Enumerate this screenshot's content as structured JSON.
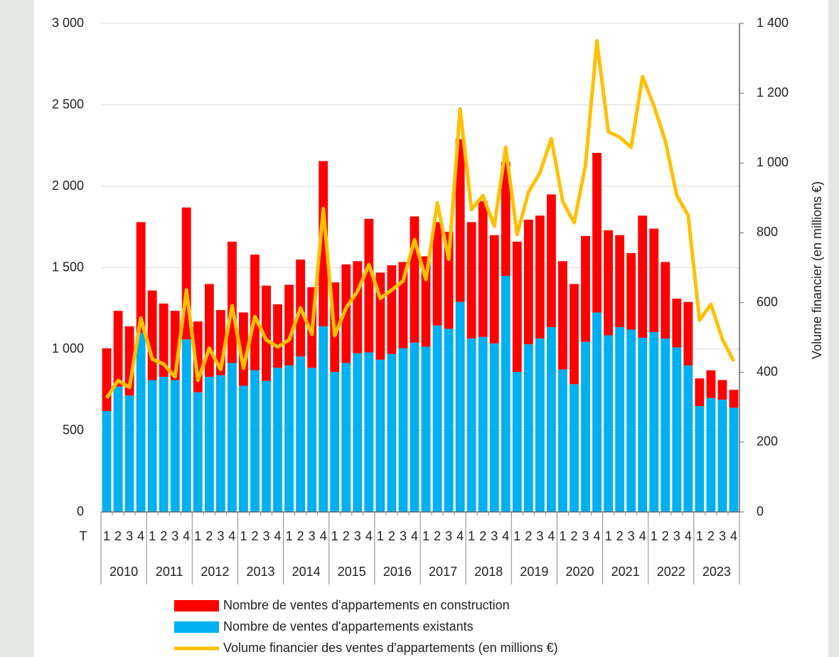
{
  "chart_data": {
    "type": "bar_line",
    "x_axis_prefix": "T",
    "y2_label": "Volume financier (en millions €)",
    "categories": [
      "1",
      "2",
      "3",
      "4",
      "1",
      "2",
      "3",
      "4",
      "1",
      "2",
      "3",
      "4",
      "1",
      "2",
      "3",
      "4",
      "1",
      "2",
      "3",
      "4",
      "1",
      "2",
      "3",
      "4",
      "1",
      "2",
      "3",
      "4",
      "1",
      "2",
      "3",
      "4",
      "1",
      "2",
      "3",
      "4",
      "1",
      "2",
      "3",
      "4",
      "1",
      "2",
      "3",
      "4",
      "1",
      "2",
      "3",
      "4",
      "1",
      "2",
      "3",
      "4",
      "1",
      "2",
      "3",
      "4"
    ],
    "years": [
      "2010",
      "2011",
      "2012",
      "2013",
      "2014",
      "2015",
      "2016",
      "2017",
      "2018",
      "2019",
      "2020",
      "2021",
      "2022",
      "2023"
    ],
    "series": [
      {
        "name": "Nombre de ventes d'appartements en construction",
        "color": "#ff0000",
        "values": [
          385,
          465,
          425,
          680,
          550,
          450,
          425,
          810,
          435,
          570,
          400,
          745,
          450,
          710,
          585,
          390,
          495,
          595,
          495,
          1015,
          550,
          605,
          565,
          820,
          535,
          545,
          530,
          775,
          555,
          635,
          595,
          1000,
          715,
          835,
          665,
          700,
          800,
          765,
          755,
          815,
          665,
          615,
          650,
          980,
          645,
          565,
          470,
          750,
          635,
          470,
          300,
          390,
          170,
          170,
          120,
          110
        ]
      },
      {
        "name": "Nombre de ventes d'appartements existants",
        "color": "#00b0f0",
        "values": [
          620,
          770,
          715,
          1100,
          810,
          830,
          810,
          1060,
          735,
          830,
          840,
          915,
          775,
          870,
          805,
          885,
          900,
          955,
          885,
          1140,
          860,
          915,
          975,
          980,
          935,
          970,
          1005,
          1040,
          1015,
          1145,
          1125,
          1290,
          1065,
          1075,
          1035,
          1450,
          860,
          1030,
          1065,
          1135,
          875,
          785,
          1045,
          1225,
          1085,
          1135,
          1120,
          1070,
          1105,
          1065,
          1010,
          900,
          650,
          700,
          690,
          640
        ]
      },
      {
        "name": "Volume financier des ventes d'appartements (en millions €)",
        "color": "#ffc000",
        "axis": "y2",
        "values": [
          326,
          377,
          357,
          556,
          438,
          424,
          387,
          636,
          377,
          469,
          408,
          591,
          412,
          560,
          493,
          473,
          493,
          585,
          509,
          870,
          505,
          585,
          632,
          709,
          612,
          636,
          662,
          780,
          666,
          886,
          724,
          1155,
          866,
          907,
          819,
          1045,
          795,
          917,
          972,
          1070,
          890,
          829,
          994,
          1350,
          1090,
          1074,
          1045,
          1248,
          1164,
          1063,
          907,
          850,
          550,
          595,
          495,
          432
        ]
      }
    ],
    "ylim": [
      0,
      3000
    ],
    "yticks": [
      0,
      500,
      {
        "value": 1000,
        "label": "1 000"
      },
      {
        "value": 1500,
        "label": "1 500"
      },
      {
        "value": 2000,
        "label": "2 000"
      },
      {
        "value": 2500,
        "label": "2 500"
      },
      {
        "value": 3000,
        "label": "3 000"
      }
    ],
    "y2lim": [
      0,
      1400
    ],
    "y2ticks": [
      0,
      200,
      400,
      600,
      800,
      {
        "value": 1000,
        "label": "1 000"
      },
      {
        "value": 1200,
        "label": "1 200"
      },
      {
        "value": 1400,
        "label": "1 400"
      }
    ],
    "grid": true
  }
}
